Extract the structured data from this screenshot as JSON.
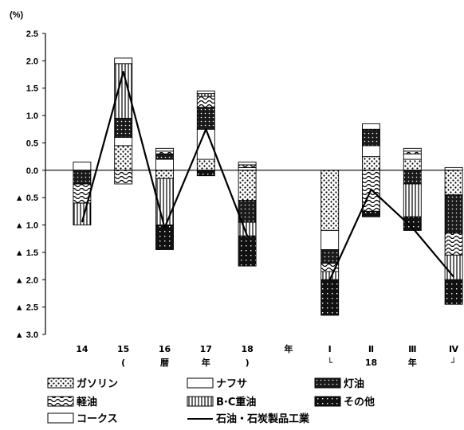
{
  "chart_data": {
    "type": "bar",
    "stacked": true,
    "unit": "(%)",
    "ylim": [
      -3.0,
      2.5
    ],
    "y_ticks": [
      {
        "v": 2.5,
        "label": "2.5"
      },
      {
        "v": 2.0,
        "label": "2.0"
      },
      {
        "v": 1.5,
        "label": "1.5"
      },
      {
        "v": 1.0,
        "label": "1.0"
      },
      {
        "v": 0.5,
        "label": "0.5"
      },
      {
        "v": 0.0,
        "label": "0.0"
      },
      {
        "v": -0.5,
        "label": "▲ 0.5"
      },
      {
        "v": -1.0,
        "label": "▲ 1.0"
      },
      {
        "v": -1.5,
        "label": "▲ 1.5"
      },
      {
        "v": -2.0,
        "label": "▲ 2.0"
      },
      {
        "v": -2.5,
        "label": "▲ 2.5"
      },
      {
        "v": -3.0,
        "label": "▲ 3.0"
      }
    ],
    "category_labels": [
      [
        "14"
      ],
      [
        "15",
        "("
      ],
      [
        "16",
        "暦"
      ],
      [
        "17",
        "年"
      ],
      [
        "18",
        ")"
      ],
      [
        "年"
      ],
      [
        "Ⅰ",
        "└"
      ],
      [
        "Ⅱ",
        "18"
      ],
      [
        "Ⅲ",
        "年"
      ],
      [
        "Ⅳ",
        "┘"
      ]
    ],
    "series": [
      {
        "name": "ガソリン",
        "key": "gasoline",
        "values": [
          0,
          0.45,
          -0.15,
          0.2,
          -0.55,
          null,
          -1.1,
          0.25,
          0.2,
          -0.45
        ]
      },
      {
        "name": "ナフサ",
        "key": "naphtha",
        "values": [
          0.15,
          0.15,
          0.2,
          0.55,
          0.05,
          null,
          -0.35,
          0.2,
          0.1,
          0.05
        ]
      },
      {
        "name": "灯油",
        "key": "kerosene",
        "values": [
          -0.25,
          0.35,
          0.1,
          0.4,
          -0.4,
          null,
          -0.25,
          0.3,
          -0.25,
          -0.7
        ]
      },
      {
        "name": "軽油",
        "key": "diesel",
        "values": [
          -0.35,
          -0.25,
          0.05,
          0.2,
          0.05,
          null,
          -0.15,
          -0.75,
          0.05,
          -0.4
        ]
      },
      {
        "name": "B·C重油",
        "key": "bc_oil",
        "values": [
          -0.4,
          1.0,
          -0.85,
          0.05,
          -0.25,
          null,
          -0.15,
          0.0,
          -0.6,
          -0.45
        ]
      },
      {
        "name": "その他",
        "key": "other",
        "values": [
          0,
          0,
          -0.45,
          -0.1,
          -0.55,
          null,
          -0.65,
          -0.1,
          -0.25,
          -0.45
        ]
      },
      {
        "name": "コークス",
        "key": "coke",
        "values": [
          0,
          0.1,
          0.05,
          0.05,
          0.05,
          null,
          0,
          0.1,
          0.05,
          0
        ]
      }
    ],
    "line": {
      "name": "石油・石炭製品工業",
      "values": [
        -0.95,
        1.8,
        -1.05,
        0.75,
        -1.2,
        null,
        -2.0,
        -0.35,
        -1.05,
        -1.95
      ]
    },
    "legend": [
      {
        "key": "gasoline",
        "label": "ガソリン"
      },
      {
        "key": "naphtha",
        "label": "ナフサ"
      },
      {
        "key": "kerosene",
        "label": "灯油"
      },
      {
        "key": "diesel",
        "label": "軽油"
      },
      {
        "key": "bc_oil",
        "label": "B·C重油"
      },
      {
        "key": "other",
        "label": "その他"
      },
      {
        "key": "coke",
        "label": "コークス"
      },
      {
        "key": "line",
        "label": "石油・石炭製品工業"
      }
    ],
    "grid": false,
    "legend_position": "bottom"
  }
}
